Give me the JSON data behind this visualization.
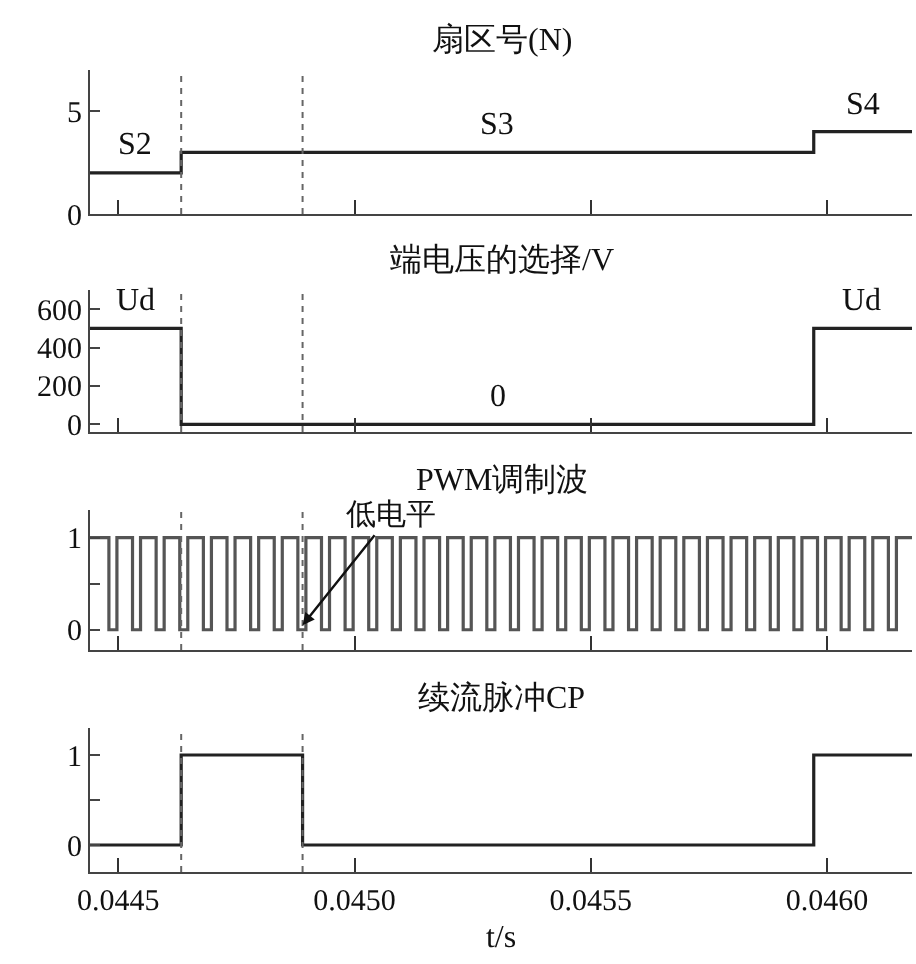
{
  "chart_data": [
    {
      "type": "step",
      "title": "扇区号(N)",
      "x": [
        0.04444,
        0.044633,
        0.045972,
        0.04618
      ],
      "series": [
        {
          "color": "#222222",
          "values": [
            2,
            3,
            4,
            4
          ]
        }
      ],
      "xlim": [
        0.04444,
        0.04618
      ],
      "ylim": [
        0,
        7
      ],
      "yticks": [
        0,
        5
      ],
      "tick_labels": "y",
      "ref_lines": [
        {
          "axis": "x",
          "value": 0.044633,
          "color": "#666666",
          "line_style": "dotted"
        },
        {
          "axis": "x",
          "value": 0.04489,
          "color": "#666666",
          "line_style": "dotted"
        }
      ],
      "annotations": [
        "S2",
        "S3",
        "S4"
      ]
    },
    {
      "type": "step",
      "title": "端电压的选择/V",
      "x": [
        0.04444,
        0.044633,
        0.045972,
        0.04618
      ],
      "series": [
        {
          "color": "#222222",
          "values": [
            500,
            0,
            500,
            500
          ]
        }
      ],
      "xlim": [
        0.04444,
        0.04618
      ],
      "ylim": [
        -40,
        700
      ],
      "yticks": [
        0,
        200,
        400,
        600
      ],
      "tick_labels": "y",
      "ref_lines": [
        {
          "axis": "x",
          "value": 0.044633,
          "color": "#666666",
          "line_style": "dotted"
        },
        {
          "axis": "x",
          "value": 0.04489,
          "color": "#666666",
          "line_style": "dotted"
        }
      ],
      "annotations": [
        "Ud",
        "0",
        "Ud"
      ]
    },
    {
      "type": "step",
      "title": "PWM调制波",
      "x": [
        0.04444,
        0.04448,
        0.044497,
        0.04453,
        0.044547,
        0.04458,
        0.044597,
        0.04463,
        0.044647,
        0.04468,
        0.044697,
        0.04473,
        0.044747,
        0.04478,
        0.044797,
        0.04483,
        0.044847,
        0.04488,
        0.044897,
        0.04493,
        0.044947,
        0.04498,
        0.044997,
        0.04503,
        0.045047,
        0.04508,
        0.045097,
        0.04513,
        0.045147,
        0.04518,
        0.045197,
        0.04523,
        0.045247,
        0.04528,
        0.045297,
        0.04533,
        0.045347,
        0.04538,
        0.045397,
        0.04543,
        0.045447,
        0.04548,
        0.045497,
        0.04553,
        0.045547,
        0.04558,
        0.045597,
        0.04563,
        0.045647,
        0.04568,
        0.045697,
        0.04573,
        0.045747,
        0.04578,
        0.045797,
        0.04583,
        0.045847,
        0.04588,
        0.045897,
        0.04593,
        0.045947,
        0.04598,
        0.045997,
        0.04603,
        0.046047,
        0.04608,
        0.046097,
        0.04613,
        0.046147,
        0.04618
      ],
      "series": [
        {
          "color": "#555555",
          "values": [
            1,
            0,
            1,
            0,
            1,
            0,
            1,
            0,
            1,
            0,
            1,
            0,
            1,
            0,
            1,
            0,
            1,
            0,
            1,
            0,
            1,
            0,
            1,
            0,
            1,
            0,
            1,
            0,
            1,
            0,
            1,
            0,
            1,
            0,
            1,
            0,
            1,
            0,
            1,
            0,
            1,
            0,
            1,
            0,
            1,
            0,
            1,
            0,
            1,
            0,
            1,
            0,
            1,
            0,
            1,
            0,
            1,
            0,
            1,
            0,
            1,
            0,
            1,
            0,
            1,
            0,
            1,
            0,
            1,
            1
          ]
        }
      ],
      "xlim": [
        0.04444,
        0.04618
      ],
      "ylim": [
        -0.22,
        1.3
      ],
      "yticks": [
        0,
        {
          "value": 0.5,
          "label": null
        },
        1
      ],
      "tick_labels": "y",
      "ref_lines": [
        {
          "axis": "x",
          "value": 0.044633,
          "color": "#666666",
          "line_style": "dotted"
        },
        {
          "axis": "x",
          "value": 0.04489,
          "color": "#666666",
          "line_style": "dotted"
        }
      ],
      "annotations": [
        {
          "text": "低电平",
          "x": 0.04489,
          "y": 0.05
        }
      ]
    },
    {
      "type": "step",
      "title": "续流脉冲CP",
      "xlabel": "t/s",
      "x": [
        0.04444,
        0.044633,
        0.04489,
        0.045972,
        0.04618
      ],
      "series": [
        {
          "color": "#222222",
          "values": [
            0,
            1,
            0,
            1,
            1
          ]
        }
      ],
      "xlim": [
        0.04444,
        0.04618
      ],
      "xticks": [
        0.0445,
        {
          "value": 0.045,
          "label": "0.0450"
        },
        0.0455,
        {
          "value": 0.046,
          "label": "0.0460"
        }
      ],
      "ylim": [
        -0.3,
        1.3
      ],
      "yticks": [
        0,
        {
          "value": 0.5,
          "label": null
        },
        1
      ],
      "ref_lines": [
        {
          "axis": "x",
          "value": 0.044633,
          "color": "#666666",
          "line_style": "dotted"
        },
        {
          "axis": "x",
          "value": 0.04489,
          "color": "#666666",
          "line_style": "dotted"
        }
      ]
    }
  ]
}
